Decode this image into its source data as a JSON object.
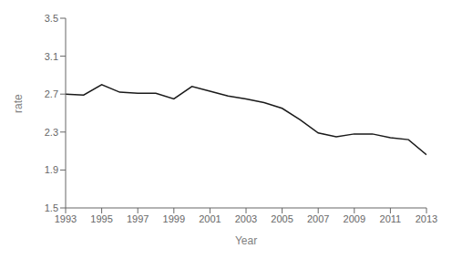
{
  "chart_data": {
    "type": "line",
    "x": [
      1993,
      1994,
      1995,
      1996,
      1997,
      1998,
      1999,
      2000,
      2001,
      2002,
      2003,
      2004,
      2005,
      2006,
      2007,
      2008,
      2009,
      2010,
      2011,
      2012,
      2013
    ],
    "values": [
      2.7,
      2.69,
      2.8,
      2.72,
      2.71,
      2.71,
      2.65,
      2.78,
      2.73,
      2.68,
      2.65,
      2.61,
      2.55,
      2.43,
      2.29,
      2.25,
      2.28,
      2.28,
      2.24,
      2.22,
      2.06
    ],
    "xlabel": "Year",
    "ylabel": "rate",
    "xlim": [
      1993,
      2013
    ],
    "ylim": [
      1.5,
      3.5
    ],
    "xticks": [
      1993,
      1995,
      1997,
      1999,
      2001,
      2003,
      2005,
      2007,
      2009,
      2011,
      2013
    ],
    "yticks": [
      1.5,
      1.9,
      2.3,
      2.7,
      3.1,
      3.5
    ],
    "color": "#1a1a1a",
    "grid": false
  }
}
